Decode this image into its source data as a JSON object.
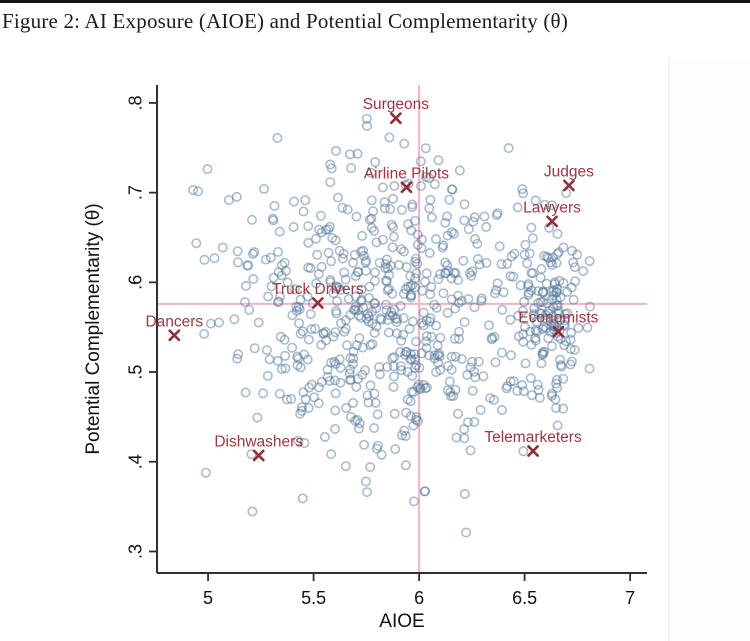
{
  "page": {
    "title": "Figure 2: AI Exposure (AIOE) and Potential Complementarity (θ)"
  },
  "chart_data": {
    "type": "scatter",
    "title": "",
    "xlabel": "AIOE",
    "ylabel": "Potential Complementarity (θ)",
    "xlim": [
      4.758,
      7.08
    ],
    "ylim": [
      0.276,
      0.82
    ],
    "x_ticks": [
      5,
      5.5,
      6,
      6.5,
      7
    ],
    "x_tick_labels": [
      "5",
      "5.5",
      "6",
      "6.5",
      "7"
    ],
    "y_ticks": [
      0.3,
      0.4,
      0.5,
      0.6,
      0.7,
      0.8
    ],
    "y_tick_labels": [
      ".3",
      ".4",
      ".5",
      ".6",
      ".7",
      ".8"
    ],
    "grid": false,
    "legend": "none",
    "reference_lines": {
      "vertical_x": 6.0,
      "horizontal_y": 0.576,
      "color": "#f3b3c4"
    },
    "labeled_points": [
      {
        "label": "Surgeons",
        "x": 5.89,
        "y": 0.783
      },
      {
        "label": "Airline Pilots",
        "x": 5.94,
        "y": 0.706
      },
      {
        "label": "Judges",
        "x": 6.71,
        "y": 0.708
      },
      {
        "label": "Lawyers",
        "x": 6.63,
        "y": 0.668
      },
      {
        "label": "Truck Drivers",
        "x": 5.52,
        "y": 0.577
      },
      {
        "label": "Dancers",
        "x": 4.84,
        "y": 0.541
      },
      {
        "label": "Economists",
        "x": 6.66,
        "y": 0.545
      },
      {
        "label": "Dishwashers",
        "x": 5.24,
        "y": 0.407
      },
      {
        "label": "Telemarketers",
        "x": 6.54,
        "y": 0.412
      }
    ],
    "labeled_point_style": {
      "marker": "x",
      "color": "#8e2f3a",
      "label_color": "#9c3642"
    },
    "background_cloud": {
      "note": "approximately 750 unlabeled occupation points shown as hollow circles; exact values not readable, reproduced as seeded gaussian mixture",
      "marker": "hollow-circle",
      "color": "#54779b",
      "opacity": 0.5,
      "seed": 42,
      "clip": {
        "x": [
          4.88,
          6.88
        ],
        "y": [
          0.308,
          0.79
        ]
      },
      "components": [
        {
          "n": 360,
          "cx": 5.78,
          "cy": 0.585,
          "sx": 0.38,
          "sy": 0.075
        },
        {
          "n": 130,
          "cx": 6.63,
          "cy": 0.565,
          "sx": 0.07,
          "sy": 0.05
        },
        {
          "n": 160,
          "cx": 5.85,
          "cy": 0.5,
          "sx": 0.45,
          "sy": 0.07
        },
        {
          "n": 60,
          "cx": 6.1,
          "cy": 0.65,
          "sx": 0.35,
          "sy": 0.05
        }
      ]
    }
  }
}
